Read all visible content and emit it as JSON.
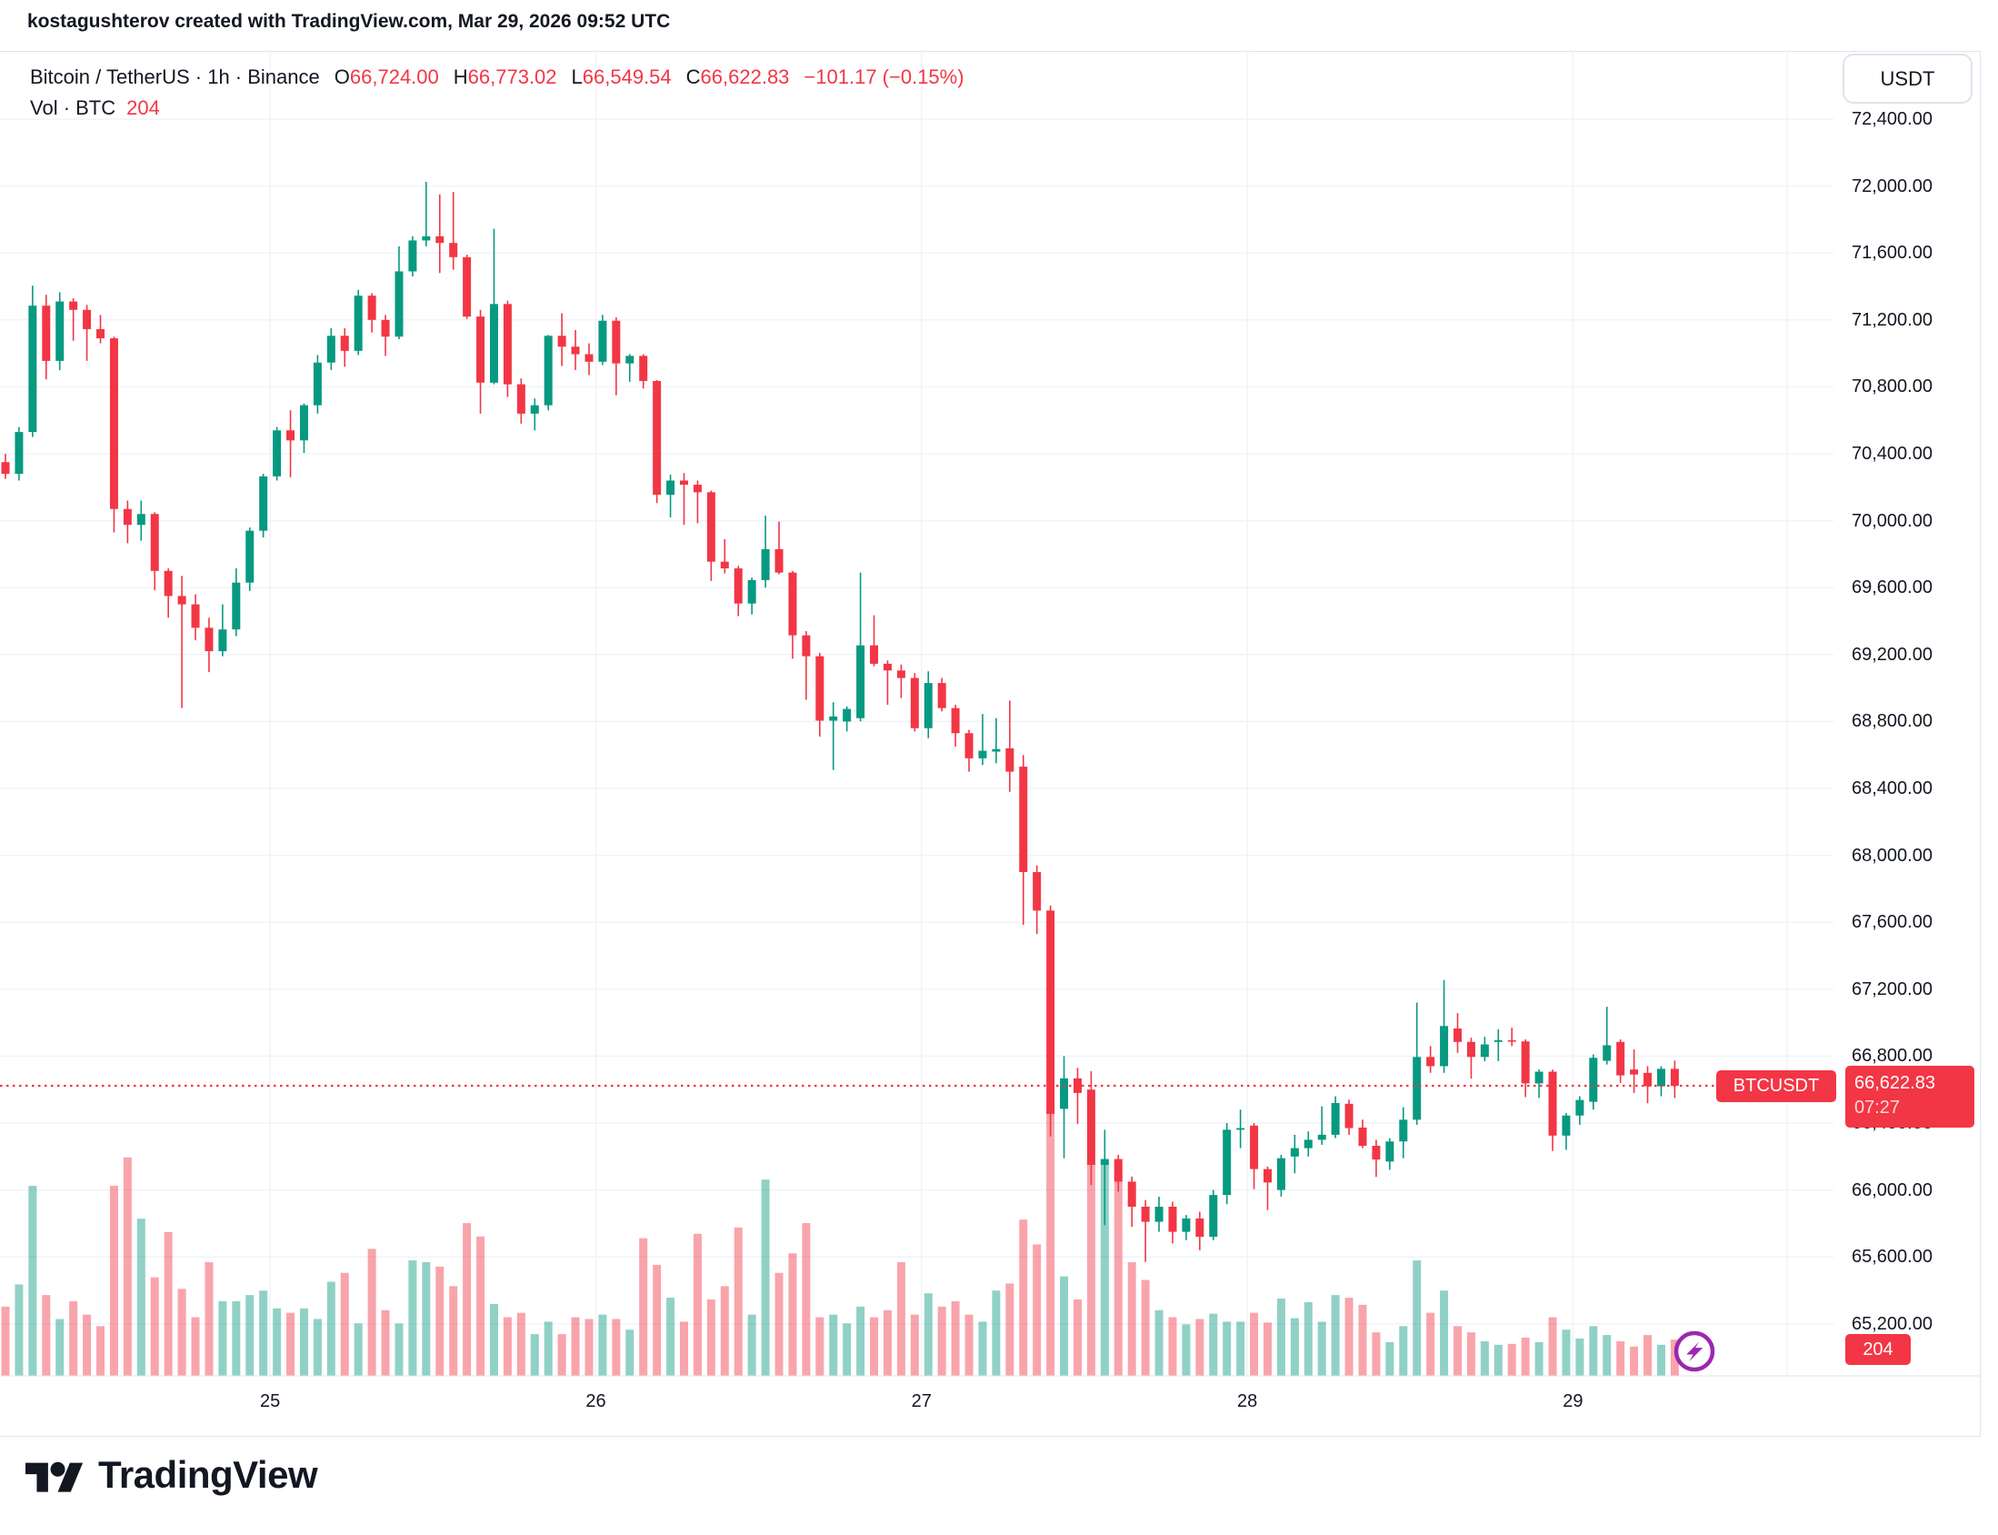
{
  "attribution": "kostagushterov created with TradingView.com, Mar 29, 2026 09:52 UTC",
  "toolbar": {
    "currency_button": "USDT"
  },
  "legend": {
    "symbol": "Bitcoin / TetherUS · 1h · Binance",
    "o_label": "O",
    "o_value": "66,724.00",
    "h_label": "H",
    "h_value": "66,773.02",
    "l_label": "L",
    "l_value": "66,549.54",
    "c_label": "C",
    "c_value": "66,622.83",
    "change": "−101.17 (−0.15%)",
    "vol_label": "Vol · BTC",
    "vol_value": "204"
  },
  "price_tag": {
    "symbol": "BTCUSDT",
    "price": "66,622.83",
    "countdown": "07:27"
  },
  "volume_tag": {
    "value": "204"
  },
  "logo": {
    "wordmark": "TradingView"
  },
  "colors": {
    "up": "#089981",
    "down": "#F23645",
    "text": "#131722",
    "grid": "#F0F3FA",
    "border": "#E0E3EB",
    "accent_purple": "#9C27B0",
    "dotted_line": "#F23645"
  },
  "chart_data": {
    "type": "candlestick",
    "title": "Bitcoin / TetherUS · 1h · Binance",
    "symbol": "BTCUSDT",
    "interval": "1h",
    "exchange": "Binance",
    "legend_position": "top-left",
    "grid": true,
    "last_price": 66622.83,
    "last_volume": 204,
    "ylim": [
      65000,
      72600
    ],
    "price_axis_ticks": [
      72400,
      72000,
      71600,
      71200,
      70800,
      70400,
      70000,
      69600,
      69200,
      68800,
      68400,
      68000,
      67600,
      67200,
      66800,
      66400,
      66000,
      65600,
      65200
    ],
    "x_labels": [
      "25",
      "26",
      "27",
      "28",
      "29"
    ],
    "day_boundaries": [
      19.5,
      43.5,
      67.5,
      91.5,
      115.5
    ],
    "extra_vgrid_x": 1966,
    "candles": [
      [
        70350,
        70400,
        70250,
        70280,
        390
      ],
      [
        70280,
        70560,
        70240,
        70530,
        515
      ],
      [
        70530,
        71405,
        70500,
        71285,
        1070
      ],
      [
        71285,
        71350,
        70845,
        70955,
        455
      ],
      [
        70955,
        71365,
        70900,
        71310,
        320
      ],
      [
        71310,
        71330,
        71075,
        71260,
        420
      ],
      [
        71260,
        71290,
        70955,
        71145,
        345
      ],
      [
        71145,
        71230,
        71060,
        71090,
        280
      ],
      [
        71090,
        71100,
        69930,
        70070,
        1070
      ],
      [
        70070,
        70120,
        69865,
        69975,
        1230
      ],
      [
        69975,
        70120,
        69880,
        70040,
        885
      ],
      [
        70040,
        70050,
        69585,
        69700,
        555
      ],
      [
        69700,
        69715,
        69420,
        69550,
        810
      ],
      [
        69550,
        69670,
        68880,
        69500,
        490
      ],
      [
        69500,
        69560,
        69285,
        69360,
        330
      ],
      [
        69360,
        69420,
        69095,
        69220,
        640
      ],
      [
        69220,
        69500,
        69190,
        69350,
        420
      ],
      [
        69350,
        69715,
        69310,
        69630,
        420
      ],
      [
        69630,
        69960,
        69580,
        69940,
        455
      ],
      [
        69940,
        70280,
        69900,
        70265,
        480
      ],
      [
        70265,
        70560,
        70240,
        70540,
        380
      ],
      [
        70540,
        70660,
        70260,
        70480,
        355
      ],
      [
        70480,
        70700,
        70405,
        70690,
        380
      ],
      [
        70690,
        70990,
        70640,
        70945,
        320
      ],
      [
        70945,
        71150,
        70900,
        71105,
        530
      ],
      [
        71105,
        71150,
        70920,
        71015,
        580
      ],
      [
        71015,
        71380,
        70990,
        71345,
        295
      ],
      [
        71345,
        71360,
        71125,
        71200,
        715
      ],
      [
        71200,
        71230,
        70985,
        71100,
        370
      ],
      [
        71100,
        71640,
        71085,
        71490,
        295
      ],
      [
        71490,
        71700,
        71460,
        71675,
        650
      ],
      [
        71675,
        72025,
        71640,
        71700,
        640
      ],
      [
        71700,
        71950,
        71480,
        71660,
        615
      ],
      [
        71660,
        71965,
        71500,
        71575,
        505
      ],
      [
        71575,
        71590,
        71205,
        71220,
        860
      ],
      [
        71220,
        71260,
        70640,
        70825,
        785
      ],
      [
        70825,
        71745,
        70815,
        71295,
        405
      ],
      [
        71295,
        71315,
        70740,
        70815,
        330
      ],
      [
        70815,
        70850,
        70580,
        70640,
        355
      ],
      [
        70640,
        70730,
        70540,
        70690,
        235
      ],
      [
        70690,
        71110,
        70660,
        71105,
        305
      ],
      [
        71105,
        71240,
        70925,
        71040,
        235
      ],
      [
        71040,
        71140,
        70900,
        70995,
        330
      ],
      [
        70995,
        71060,
        70870,
        70950,
        320
      ],
      [
        70950,
        71230,
        70930,
        71195,
        345
      ],
      [
        71195,
        71215,
        70750,
        70940,
        320
      ],
      [
        70940,
        70995,
        70830,
        70985,
        260
      ],
      [
        70985,
        70995,
        70790,
        70835,
        775
      ],
      [
        70835,
        70840,
        70105,
        70155,
        625
      ],
      [
        70155,
        70275,
        70020,
        70240,
        440
      ],
      [
        70240,
        70285,
        69975,
        70215,
        305
      ],
      [
        70215,
        70240,
        69985,
        70170,
        800
      ],
      [
        70170,
        70180,
        69640,
        69755,
        430
      ],
      [
        69755,
        69890,
        69685,
        69715,
        505
      ],
      [
        69715,
        69730,
        69430,
        69505,
        835
      ],
      [
        69505,
        69660,
        69440,
        69645,
        345
      ],
      [
        69645,
        70030,
        69600,
        69830,
        1105
      ],
      [
        69830,
        69995,
        69680,
        69690,
        580
      ],
      [
        69690,
        69700,
        69175,
        69315,
        690
      ],
      [
        69315,
        69340,
        68930,
        69190,
        860
      ],
      [
        69190,
        69210,
        68710,
        68805,
        330
      ],
      [
        68805,
        68915,
        68510,
        68830,
        345
      ],
      [
        68800,
        68890,
        68740,
        68875,
        295
      ],
      [
        68820,
        69690,
        68800,
        69255,
        390
      ],
      [
        69255,
        69435,
        69130,
        69145,
        330
      ],
      [
        69145,
        69165,
        68900,
        69105,
        370
      ],
      [
        69105,
        69140,
        68940,
        69060,
        640
      ],
      [
        69060,
        69090,
        68740,
        68760,
        345
      ],
      [
        68760,
        69100,
        68700,
        69030,
        465
      ],
      [
        69030,
        69060,
        68860,
        68880,
        390
      ],
      [
        68880,
        68900,
        68650,
        68730,
        420
      ],
      [
        68730,
        68750,
        68500,
        68580,
        345
      ],
      [
        68580,
        68845,
        68540,
        68625,
        305
      ],
      [
        68620,
        68820,
        68550,
        68635,
        480
      ],
      [
        68640,
        68925,
        68380,
        68500,
        520
      ],
      [
        68530,
        68600,
        67585,
        67900,
        880
      ],
      [
        67900,
        67940,
        67530,
        67670,
        740
      ],
      [
        67670,
        67700,
        66320,
        66455,
        1500
      ],
      [
        66485,
        66800,
        66190,
        66667,
        560
      ],
      [
        66667,
        66730,
        66395,
        66580,
        430
      ],
      [
        66600,
        66710,
        66030,
        66150,
        1210
      ],
      [
        66150,
        66360,
        65790,
        66185,
        1190
      ],
      [
        66185,
        66210,
        65990,
        66050,
        1150
      ],
      [
        66050,
        66080,
        65780,
        65900,
        640
      ],
      [
        65900,
        65940,
        65570,
        65810,
        540
      ],
      [
        65810,
        65960,
        65750,
        65900,
        370
      ],
      [
        65900,
        65930,
        65680,
        65750,
        330
      ],
      [
        65750,
        65850,
        65700,
        65830,
        290
      ],
      [
        65830,
        65870,
        65640,
        65720,
        320
      ],
      [
        65720,
        66000,
        65700,
        65970,
        350
      ],
      [
        65970,
        66400,
        65915,
        66360,
        305
      ],
      [
        66360,
        66480,
        66250,
        66370,
        305
      ],
      [
        66385,
        66400,
        66005,
        66125,
        355
      ],
      [
        66125,
        66140,
        65880,
        66045,
        300
      ],
      [
        66000,
        66210,
        65960,
        66190,
        435
      ],
      [
        66200,
        66330,
        66100,
        66250,
        325
      ],
      [
        66250,
        66350,
        66200,
        66300,
        415
      ],
      [
        66300,
        66500,
        66270,
        66330,
        305
      ],
      [
        66330,
        66560,
        66310,
        66520,
        455
      ],
      [
        66515,
        66540,
        66330,
        66370,
        440
      ],
      [
        66373,
        66420,
        66250,
        66264,
        400
      ],
      [
        66264,
        66300,
        66078,
        66182,
        245
      ],
      [
        66170,
        66310,
        66120,
        66290,
        190
      ],
      [
        66290,
        66495,
        66190,
        66420,
        280
      ],
      [
        66420,
        67120,
        66390,
        66795,
        650
      ],
      [
        66795,
        66860,
        66700,
        66740,
        355
      ],
      [
        66740,
        67255,
        66700,
        66980,
        480
      ],
      [
        66965,
        67057,
        66820,
        66885,
        280
      ],
      [
        66885,
        66910,
        66665,
        66795,
        245
      ],
      [
        66795,
        66915,
        66770,
        66870,
        195
      ],
      [
        66885,
        66960,
        66770,
        66895,
        175
      ],
      [
        66895,
        66970,
        66860,
        66888,
        180
      ],
      [
        66888,
        66900,
        66555,
        66637,
        215
      ],
      [
        66637,
        66720,
        66550,
        66707,
        190
      ],
      [
        66707,
        66720,
        66233,
        66325,
        330
      ],
      [
        66325,
        66460,
        66240,
        66445,
        260
      ],
      [
        66445,
        66560,
        66390,
        66538,
        210
      ],
      [
        66527,
        66810,
        66480,
        66790,
        280
      ],
      [
        66772,
        67095,
        66750,
        66865,
        230
      ],
      [
        66885,
        66900,
        66640,
        66685,
        195
      ],
      [
        66720,
        66840,
        66580,
        66690,
        165
      ],
      [
        66700,
        66740,
        66518,
        66620,
        230
      ],
      [
        66620,
        66740,
        66560,
        66724,
        175
      ],
      [
        66724,
        66773.02,
        66549.54,
        66622.83,
        204
      ]
    ]
  }
}
